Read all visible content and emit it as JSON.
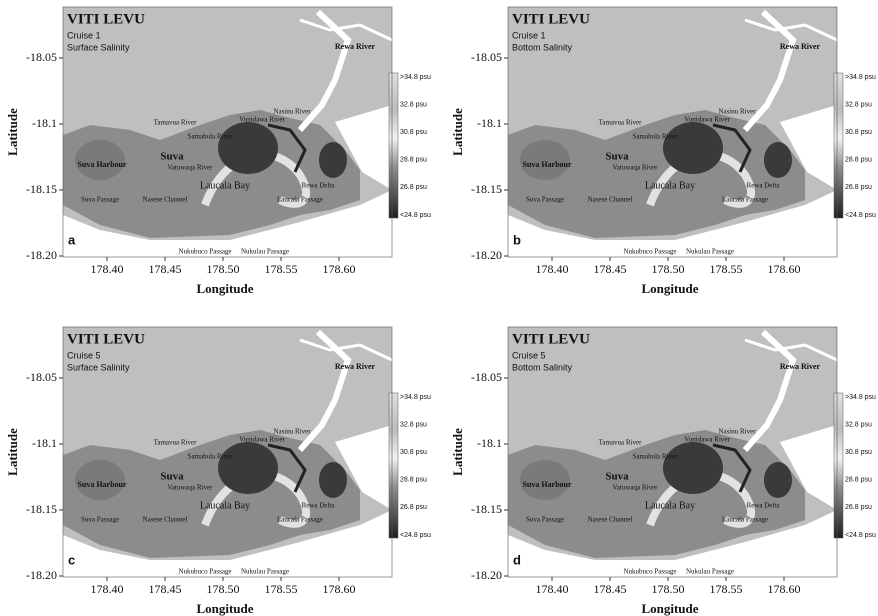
{
  "panels": [
    {
      "title": "VITI LEVU",
      "cruise": "Cruise 1",
      "variable": "Surface Salinity",
      "letter": "a"
    },
    {
      "title": "VITI LEVU",
      "cruise": "Cruise 1",
      "variable": "Bottom Salinity",
      "letter": "b"
    },
    {
      "title": "VITI LEVU",
      "cruise": "Cruise 5",
      "variable": "Surface Salinity",
      "letter": "c"
    },
    {
      "title": "VITI LEVU",
      "cruise": "Cruise 5",
      "variable": "Bottom Salinity",
      "letter": "d"
    }
  ],
  "axes": {
    "xlabel": "Longitude",
    "ylabel": "Latitude",
    "xticks": [
      {
        "value": 178.4,
        "label": "178.40"
      },
      {
        "value": 178.45,
        "label": "178.45"
      },
      {
        "value": 178.5,
        "label": "178.50"
      },
      {
        "value": 178.55,
        "label": "178.55"
      },
      {
        "value": 178.6,
        "label": "178.60"
      }
    ],
    "yticks": [
      -18.05,
      -18.1,
      -18.15,
      {
        "value": -18.2,
        "label": "-18.20"
      }
    ]
  },
  "colorbar": {
    "labels": [
      ">34.8 psu",
      "32.8 psu",
      "30.8 psu",
      "28.8 psu",
      "26.8 psu",
      "<24.8 psu"
    ]
  },
  "place_labels": [
    "Rewa River",
    "Tamavua River",
    "Suva",
    "Suva Harbour",
    "Vatuwaqa River",
    "Samabula River",
    "Vunidawa River",
    "Nasinu River",
    "Laucala Bay",
    "Rewa Delta",
    "Suva Passage",
    "Nasese Channel",
    "Laucala Passage",
    "Nukubuco Passage",
    "Nukulau Passage"
  ]
}
